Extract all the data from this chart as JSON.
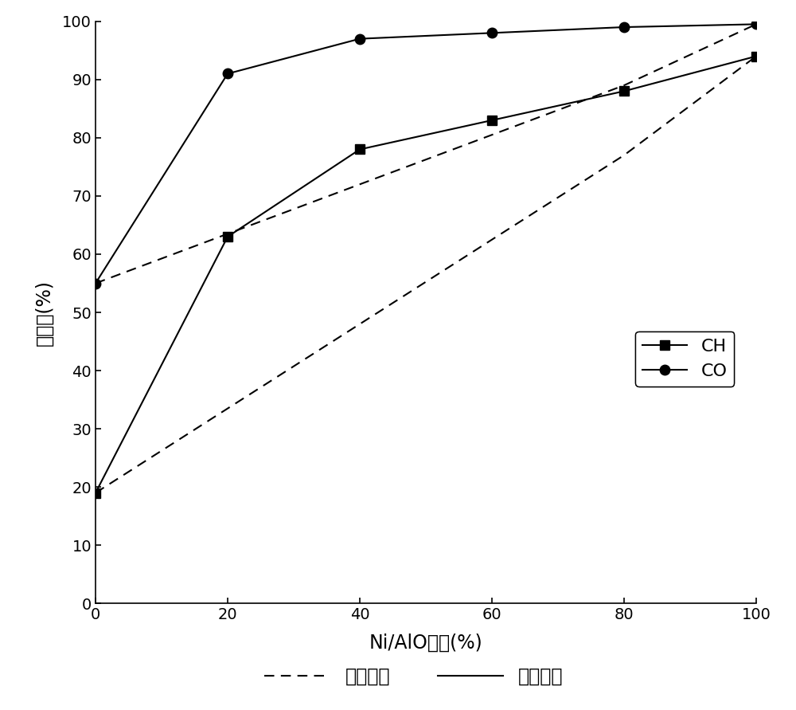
{
  "x": [
    0,
    20,
    40,
    60,
    80,
    100
  ],
  "ch_experiment": [
    19,
    63,
    78,
    83,
    88,
    94
  ],
  "co_experiment": [
    55,
    91,
    97,
    98,
    99,
    99.5
  ],
  "ch_calc_y": [
    19,
    33.5,
    48,
    62.5,
    77,
    94
  ],
  "co_calc_y": [
    55,
    63.5,
    72,
    80.5,
    89,
    99.5
  ],
  "ylabel": "转化率(%)",
  "xlabel": "Ni/AlO含量(%)",
  "legend_ch": "CH",
  "legend_co": "CO",
  "legend_calc": "计算结果",
  "legend_exp": "实验结果",
  "ylim": [
    0,
    100
  ],
  "xlim": [
    0,
    100
  ],
  "xticks": [
    0,
    20,
    40,
    60,
    80,
    100
  ],
  "yticks": [
    0,
    10,
    20,
    30,
    40,
    50,
    60,
    70,
    80,
    90,
    100
  ],
  "color": "#000000",
  "bg_color": "#ffffff",
  "linewidth": 1.5,
  "markersize_sq": 8,
  "markersize_ci": 9,
  "dash_pattern": [
    6,
    4
  ]
}
